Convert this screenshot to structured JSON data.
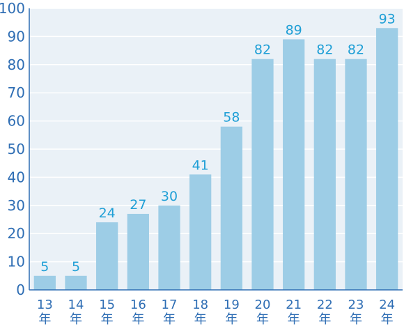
{
  "chart_data": {
    "type": "bar",
    "title": "",
    "xlabel": "",
    "ylabel": "",
    "categories": [
      [
        "13",
        "年"
      ],
      [
        "14",
        "年"
      ],
      [
        "15",
        "年"
      ],
      [
        "16",
        "年"
      ],
      [
        "17",
        "年"
      ],
      [
        "18",
        "年"
      ],
      [
        "19",
        "年"
      ],
      [
        "20",
        "年"
      ],
      [
        "21",
        "年"
      ],
      [
        "22",
        "年"
      ],
      [
        "23",
        "年"
      ],
      [
        "24",
        "年"
      ]
    ],
    "values": [
      5,
      5,
      24,
      27,
      30,
      41,
      58,
      82,
      89,
      82,
      82,
      93
    ],
    "ylim": [
      0,
      100
    ],
    "yticks": [
      0,
      10,
      20,
      30,
      40,
      50,
      60,
      70,
      80,
      90,
      100
    ],
    "grid": true,
    "data_labels": true,
    "colors": {
      "bar": "#9dcde6",
      "plot_background": "#eaf1f7",
      "grid": "#ffffff",
      "axis": "#2f6eb4",
      "tick_text": "#2f6eb4",
      "data_label_text": "#1f9fd6"
    }
  }
}
